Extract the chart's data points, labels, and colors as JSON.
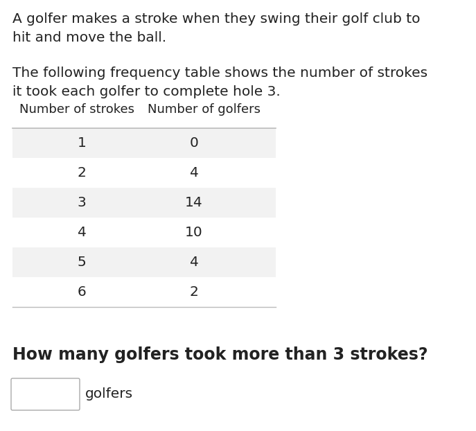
{
  "intro_text_1": "A golfer makes a stroke when they swing their golf club to\nhit and move the ball.",
  "intro_text_2": "The following frequency table shows the number of strokes\nit took each golfer to complete hole 3.",
  "col1_header": "Number of strokes",
  "col2_header": "Number of golfers",
  "strokes": [
    1,
    2,
    3,
    4,
    5,
    6
  ],
  "golfers": [
    0,
    4,
    14,
    10,
    4,
    2
  ],
  "question_text": "How many golfers took more than 3 strokes?",
  "answer_label": "golfers",
  "shaded_rows": [
    0,
    2,
    4
  ],
  "row_bg_color": "#f2f2f2",
  "white_bg": "#ffffff",
  "line_color": "#bbbbbb",
  "text_color": "#222222",
  "body_font_size": 14.5,
  "table_font_size": 14.5,
  "header_font_size": 13.0,
  "question_font_size": 17.0
}
